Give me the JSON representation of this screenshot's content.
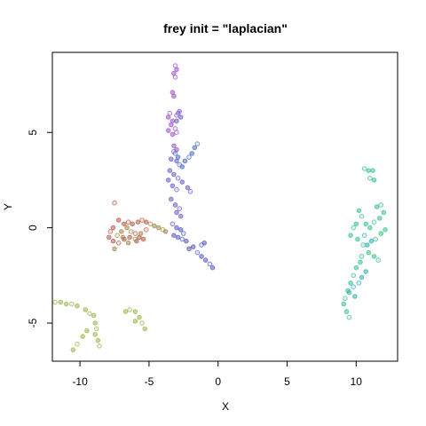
{
  "chart_data": {
    "type": "scatter",
    "title": "frey init = \"laplacian\"",
    "xlabel": "X",
    "ylabel": "Y",
    "xlim": [
      -12.0,
      13.0
    ],
    "ylim": [
      -7.0,
      9.2
    ],
    "xticks": [
      -10,
      -5,
      0,
      5,
      10
    ],
    "yticks": [
      -5,
      0,
      5
    ],
    "grid": false,
    "legend": "none",
    "marker": "open/filled circle, semi-transparent",
    "clusters": [
      {
        "color": "#9c55c9",
        "points": [
          [
            -3.1,
            8.5
          ],
          [
            -3.0,
            8.3
          ],
          [
            -3.2,
            8.1
          ],
          [
            -3.1,
            7.9
          ],
          [
            -3.3,
            7.1
          ],
          [
            -3.2,
            6.9
          ],
          [
            -3.5,
            6.0
          ],
          [
            -3.6,
            5.8
          ],
          [
            -3.3,
            5.6
          ],
          [
            -3.0,
            5.9
          ],
          [
            -2.8,
            6.1
          ],
          [
            -3.4,
            5.4
          ],
          [
            -3.1,
            5.2
          ],
          [
            -3.6,
            5.1
          ],
          [
            -3.3,
            4.9
          ],
          [
            -3.0,
            5.0
          ],
          [
            -3.2,
            4.3
          ],
          [
            -3.0,
            4.1
          ]
        ]
      },
      {
        "color": "#6a5cc9",
        "points": [
          [
            -2.9,
            6.0
          ],
          [
            -2.7,
            5.8
          ],
          [
            -3.0,
            5.6
          ],
          [
            -3.2,
            4.0
          ],
          [
            -3.4,
            3.6
          ],
          [
            -3.0,
            3.5
          ],
          [
            -2.8,
            3.3
          ],
          [
            -3.5,
            3.0
          ],
          [
            -3.2,
            2.8
          ],
          [
            -2.9,
            2.6
          ],
          [
            -3.6,
            2.5
          ],
          [
            -3.3,
            2.2
          ],
          [
            -3.0,
            2.0
          ],
          [
            -2.6,
            2.4
          ],
          [
            -2.2,
            2.1
          ],
          [
            -2.0,
            1.9
          ],
          [
            -3.4,
            1.5
          ],
          [
            -3.1,
            1.2
          ],
          [
            -2.8,
            1.0
          ],
          [
            -3.0,
            0.8
          ],
          [
            -2.7,
            0.6
          ]
        ]
      },
      {
        "color": "#4a6fc4",
        "points": [
          [
            -1.5,
            4.4
          ],
          [
            -1.7,
            4.2
          ],
          [
            -1.9,
            3.9
          ],
          [
            -2.1,
            3.7
          ],
          [
            -2.4,
            3.5
          ],
          [
            -2.6,
            3.2
          ],
          [
            -3.1,
            3.9
          ],
          [
            -2.9,
            3.7
          ]
        ]
      },
      {
        "color": "#5558c5",
        "points": [
          [
            -3.3,
            0.2
          ],
          [
            -3.0,
            0.0
          ],
          [
            -2.7,
            -0.1
          ],
          [
            -2.5,
            -0.3
          ],
          [
            -3.2,
            -0.4
          ],
          [
            -2.9,
            -0.5
          ],
          [
            -2.6,
            -0.6
          ],
          [
            -2.3,
            -0.7
          ],
          [
            -1.8,
            -1.0
          ],
          [
            -1.5,
            -1.3
          ],
          [
            -1.2,
            -1.5
          ],
          [
            -0.9,
            -1.7
          ],
          [
            -0.6,
            -1.9
          ],
          [
            -0.4,
            -2.1
          ],
          [
            -1.0,
            -0.8
          ],
          [
            -1.2,
            -0.9
          ],
          [
            -2.1,
            -1.1
          ]
        ]
      },
      {
        "color": "#b85a45",
        "points": [
          [
            -7.5,
            1.3
          ],
          [
            -7.2,
            0.4
          ],
          [
            -6.8,
            0.2
          ],
          [
            -6.5,
            0.3
          ],
          [
            -6.2,
            0.2
          ],
          [
            -5.8,
            0.3
          ],
          [
            -5.5,
            0.4
          ],
          [
            -5.2,
            0.3
          ],
          [
            -7.6,
            0.0
          ],
          [
            -7.8,
            -0.2
          ],
          [
            -7.9,
            -0.5
          ],
          [
            -7.6,
            -0.7
          ],
          [
            -7.2,
            -0.8
          ],
          [
            -6.8,
            -0.6
          ],
          [
            -6.4,
            -0.5
          ],
          [
            -6.0,
            -0.3
          ],
          [
            -5.7,
            -0.5
          ],
          [
            -5.4,
            -0.6
          ],
          [
            -5.2,
            -0.1
          ],
          [
            -5.9,
            -0.7
          ]
        ]
      },
      {
        "color": "#a3894a",
        "points": [
          [
            -7.3,
            -0.4
          ],
          [
            -7.0,
            -0.2
          ],
          [
            -6.6,
            0.0
          ],
          [
            -6.3,
            -0.2
          ],
          [
            -6.9,
            -0.5
          ],
          [
            -6.5,
            -0.8
          ],
          [
            -6.0,
            -0.6
          ],
          [
            -5.6,
            -0.3
          ],
          [
            -7.5,
            -1.1
          ],
          [
            -4.9,
            0.2
          ],
          [
            -4.6,
            0.1
          ],
          [
            -4.3,
            0.0
          ],
          [
            -4.0,
            -0.1
          ],
          [
            -3.8,
            -0.2
          ]
        ]
      },
      {
        "color": "#9ab84a",
        "points": [
          [
            -11.8,
            -3.9
          ],
          [
            -11.4,
            -3.9
          ],
          [
            -11.0,
            -4.0
          ],
          [
            -10.6,
            -4.0
          ],
          [
            -10.2,
            -4.1
          ],
          [
            -9.6,
            -4.3
          ],
          [
            -9.3,
            -4.5
          ],
          [
            -9.0,
            -4.6
          ],
          [
            -8.9,
            -5.0
          ],
          [
            -8.8,
            -5.3
          ],
          [
            -8.9,
            -5.6
          ],
          [
            -8.7,
            -5.9
          ],
          [
            -8.6,
            -6.2
          ],
          [
            -9.5,
            -5.4
          ],
          [
            -9.8,
            -5.7
          ],
          [
            -10.2,
            -6.1
          ],
          [
            -10.5,
            -6.4
          ],
          [
            -6.7,
            -4.4
          ],
          [
            -6.4,
            -4.3
          ],
          [
            -6.0,
            -4.4
          ],
          [
            -5.7,
            -4.7
          ],
          [
            -5.5,
            -5.0
          ],
          [
            -5.3,
            -5.3
          ],
          [
            -6.0,
            -4.9
          ]
        ]
      },
      {
        "color": "#39c28a",
        "points": [
          [
            10.6,
            3.1
          ],
          [
            10.9,
            3.0
          ],
          [
            11.2,
            3.0
          ],
          [
            11.0,
            2.6
          ],
          [
            11.3,
            2.5
          ],
          [
            11.5,
            1.1
          ],
          [
            11.8,
            1.2
          ],
          [
            12.0,
            0.8
          ],
          [
            11.7,
            0.5
          ],
          [
            11.3,
            0.3
          ],
          [
            11.0,
            0.0
          ],
          [
            10.7,
            0.2
          ],
          [
            10.4,
            0.6
          ],
          [
            10.2,
            0.9
          ],
          [
            10.0,
            0.2
          ],
          [
            9.8,
            0.0
          ],
          [
            9.6,
            -0.4
          ],
          [
            10.1,
            -0.6
          ],
          [
            10.5,
            -0.9
          ],
          [
            10.9,
            -1.3
          ],
          [
            11.3,
            -1.5
          ],
          [
            11.6,
            -1.7
          ],
          [
            10.3,
            -1.8
          ],
          [
            10.0,
            -2.1
          ],
          [
            9.8,
            -2.5
          ],
          [
            9.6,
            -2.9
          ],
          [
            9.4,
            -3.3
          ],
          [
            9.2,
            -3.7
          ],
          [
            9.1,
            -4.0
          ],
          [
            9.3,
            -4.4
          ],
          [
            9.5,
            -4.7
          ],
          [
            11.8,
            -0.3
          ],
          [
            12.1,
            -0.1
          ],
          [
            11.4,
            -0.6
          ]
        ]
      },
      {
        "color": "#2fb0b8",
        "points": [
          [
            9.8,
            -3.1
          ],
          [
            9.5,
            -3.4
          ],
          [
            9.9,
            -3.6
          ],
          [
            10.2,
            -2.9
          ],
          [
            10.4,
            -2.6
          ],
          [
            10.7,
            -2.3
          ],
          [
            10.4,
            -1.5
          ],
          [
            10.8,
            -0.9
          ],
          [
            11.1,
            -0.7
          ],
          [
            10.6,
            -0.4
          ]
        ]
      }
    ]
  }
}
